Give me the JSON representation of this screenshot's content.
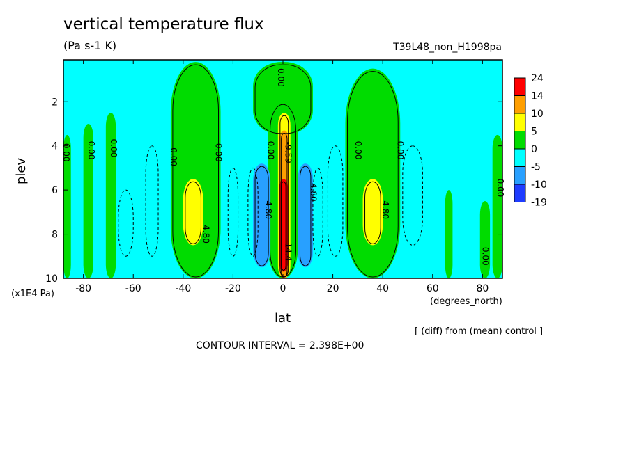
{
  "title": "vertical temperature flux",
  "units": "(Pa s-1 K)",
  "run_name": "T39L48_non_H1998pa",
  "y_scale_label": "(x1E4 Pa)",
  "x_units_label": "(degrees_north)",
  "diff_note": "[ (diff) from (mean) control ]",
  "contour_interval": "CONTOUR INTERVAL = 2.398E+00",
  "chart_data": {
    "type": "heatmap",
    "xlabel": "lat",
    "ylabel": "plev",
    "xlim": [
      -88,
      88
    ],
    "ylim": [
      10,
      0.1
    ],
    "x_ticks": [
      "-80",
      "-60",
      "-40",
      "-20",
      "0",
      "20",
      "40",
      "60",
      "80"
    ],
    "x_tick_values": [
      -80,
      -60,
      -40,
      -20,
      0,
      20,
      40,
      60,
      80
    ],
    "y_ticks": [
      "2",
      "4",
      "6",
      "8",
      "10"
    ],
    "y_tick_values": [
      2,
      4,
      6,
      8,
      10
    ],
    "legend_levels": [
      "24",
      "14",
      "10",
      "5",
      "0",
      "-5",
      "-10",
      "-19"
    ],
    "legend_colors": [
      "#ff0000",
      "#ff9f00",
      "#ffff00",
      "#00dc00",
      "#00ffff",
      "#28a0ff",
      "#1e3cff"
    ],
    "background_color": "#00ffff",
    "regions": [
      {
        "value_band": "0 to 5",
        "color": "#00dc00",
        "lat_range": [
          -45,
          -25
        ],
        "plev_range": [
          0.2,
          10
        ]
      },
      {
        "value_band": "0 to 5",
        "color": "#00dc00",
        "lat_range": [
          25,
          47
        ],
        "plev_range": [
          0.5,
          10
        ]
      },
      {
        "value_band": "0 to 5",
        "color": "#00dc00",
        "lat_range": [
          -12,
          12
        ],
        "plev_range": [
          0.2,
          3.5
        ]
      },
      {
        "value_band": "0 to 5",
        "color": "#00dc00",
        "lat_range": [
          -6,
          6
        ],
        "plev_range": [
          2,
          10
        ]
      },
      {
        "value_band": "5 to 10",
        "color": "#ffff00",
        "lat_range": [
          -40,
          -32
        ],
        "plev_range": [
          5.5,
          8.5
        ]
      },
      {
        "value_band": "5 to 10",
        "color": "#ffff00",
        "lat_range": [
          32,
          40
        ],
        "plev_range": [
          5.5,
          8.5
        ]
      },
      {
        "value_band": "5 to 10",
        "color": "#ffff00",
        "lat_range": [
          -2,
          3
        ],
        "plev_range": [
          2.5,
          10
        ]
      },
      {
        "value_band": "10 to 14",
        "color": "#ff9f00",
        "lat_range": [
          -1.5,
          2.5
        ],
        "plev_range": [
          3.3,
          10
        ]
      },
      {
        "value_band": "14 to 24",
        "color": "#ff0000",
        "lat_range": [
          -1.5,
          2
        ],
        "plev_range": [
          5.5,
          9.7
        ]
      },
      {
        "value_band": "-10 to -5",
        "color": "#28a0ff",
        "lat_range": [
          -12,
          -5
        ],
        "plev_range": [
          4.8,
          9.5
        ]
      },
      {
        "value_band": "-10 to -5",
        "color": "#28a0ff",
        "lat_range": [
          6,
          12
        ],
        "plev_range": [
          4.8,
          9.5
        ]
      }
    ],
    "contour_labels": [
      {
        "text": "0.00",
        "lat": -88,
        "plev": 4.3
      },
      {
        "text": "0.00",
        "lat": -78,
        "plev": 4.2
      },
      {
        "text": "0.00",
        "lat": -69,
        "plev": 4.1
      },
      {
        "text": "0.00",
        "lat": -45,
        "plev": 4.5
      },
      {
        "text": "0.00",
        "lat": -27,
        "plev": 4.3
      },
      {
        "text": "0.00",
        "lat": -6,
        "plev": 4.2
      },
      {
        "text": "0.00",
        "lat": -2,
        "plev": 0.9
      },
      {
        "text": "0.00",
        "lat": 29,
        "plev": 4.2
      },
      {
        "text": "0.00",
        "lat": 46,
        "plev": 4.2
      },
      {
        "text": "0.00",
        "lat": 80,
        "plev": 9.0
      },
      {
        "text": "0.00",
        "lat": 86,
        "plev": 5.9
      },
      {
        "text": "4.80",
        "lat": -32,
        "plev": 8.0
      },
      {
        "text": "4.80",
        "lat": -7,
        "plev": 6.9
      },
      {
        "text": "4.80",
        "lat": 11,
        "plev": 6.1
      },
      {
        "text": "4.80",
        "lat": 40,
        "plev": 6.9
      },
      {
        "text": "-9.59",
        "lat": 1,
        "plev": 4.3
      },
      {
        "text": "14.4",
        "lat": 1,
        "plev": 8.8
      }
    ]
  }
}
